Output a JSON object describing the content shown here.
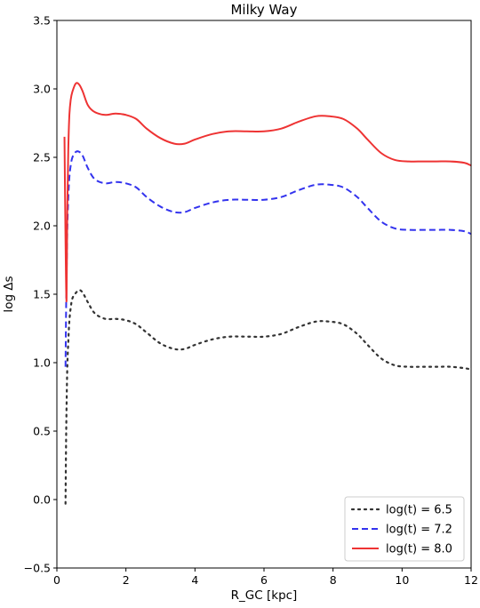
{
  "chart_data": {
    "type": "line",
    "title": "Milky Way",
    "xlabel": "R_GC [kpc]",
    "ylabel": "log Δs",
    "xlim": [
      0,
      12
    ],
    "ylim": [
      -0.5,
      3.5
    ],
    "xticks": [
      0,
      2,
      4,
      6,
      8,
      10,
      12
    ],
    "xtick_labels": [
      "0",
      "2",
      "4",
      "6",
      "8",
      "10",
      "12"
    ],
    "yticks": [
      -0.5,
      0.0,
      0.5,
      1.0,
      1.5,
      2.0,
      2.5,
      3.0,
      3.5
    ],
    "ytick_labels": [
      "−0.5",
      "0.0",
      "0.5",
      "1.0",
      "1.5",
      "2.0",
      "2.5",
      "3.0",
      "3.5"
    ],
    "grid": false,
    "legend_position": "bottom-right",
    "series": [
      {
        "name": "log(t) = 6.5",
        "color": "#333333",
        "dash": "dotted",
        "x": [
          0.25,
          0.27,
          0.3,
          0.33,
          0.36,
          0.4,
          0.45,
          0.55,
          0.65,
          0.75,
          0.9,
          1.1,
          1.4,
          1.7,
          2.0,
          2.3,
          2.6,
          3.0,
          3.4,
          3.7,
          4.0,
          4.5,
          5.0,
          5.5,
          6.0,
          6.5,
          7.0,
          7.5,
          7.9,
          8.3,
          8.7,
          9.0,
          9.4,
          9.8,
          10.2,
          10.6,
          11.0,
          11.4,
          11.8,
          12.0
        ],
        "y": [
          -0.03,
          0.5,
          0.95,
          1.15,
          1.3,
          1.4,
          1.47,
          1.51,
          1.53,
          1.51,
          1.44,
          1.36,
          1.32,
          1.32,
          1.31,
          1.28,
          1.22,
          1.14,
          1.1,
          1.1,
          1.13,
          1.17,
          1.19,
          1.19,
          1.19,
          1.21,
          1.26,
          1.3,
          1.3,
          1.28,
          1.21,
          1.13,
          1.03,
          0.98,
          0.97,
          0.97,
          0.97,
          0.97,
          0.96,
          0.95
        ]
      },
      {
        "name": "log(t) = 7.2",
        "color": "#3333ee",
        "dash": "dashed",
        "x": [
          0.25,
          0.27,
          0.3,
          0.33,
          0.36,
          0.4,
          0.45,
          0.55,
          0.65,
          0.75,
          0.9,
          1.1,
          1.4,
          1.7,
          2.0,
          2.3,
          2.6,
          3.0,
          3.4,
          3.7,
          4.0,
          4.5,
          5.0,
          5.5,
          6.0,
          6.5,
          7.0,
          7.5,
          7.9,
          8.3,
          8.7,
          9.0,
          9.4,
          9.8,
          10.2,
          10.6,
          11.0,
          11.4,
          11.8,
          12.0
        ],
        "y": [
          0.97,
          1.45,
          1.95,
          2.2,
          2.35,
          2.44,
          2.5,
          2.54,
          2.54,
          2.51,
          2.42,
          2.34,
          2.31,
          2.32,
          2.31,
          2.28,
          2.21,
          2.14,
          2.1,
          2.1,
          2.13,
          2.17,
          2.19,
          2.19,
          2.19,
          2.21,
          2.26,
          2.3,
          2.3,
          2.28,
          2.21,
          2.13,
          2.03,
          1.98,
          1.97,
          1.97,
          1.97,
          1.97,
          1.96,
          1.94
        ]
      },
      {
        "name": "log(t) = 8.0",
        "color": "#ee3333",
        "dash": "solid",
        "x": [
          0.22,
          0.25,
          0.28,
          0.3,
          0.33,
          0.36,
          0.4,
          0.45,
          0.55,
          0.65,
          0.75,
          0.9,
          1.1,
          1.4,
          1.7,
          2.0,
          2.3,
          2.6,
          3.0,
          3.4,
          3.7,
          4.0,
          4.5,
          5.0,
          5.5,
          6.0,
          6.5,
          7.0,
          7.5,
          7.9,
          8.3,
          8.7,
          9.0,
          9.4,
          9.8,
          10.2,
          10.6,
          11.0,
          11.4,
          11.8,
          12.0
        ],
        "y": [
          2.65,
          1.9,
          1.45,
          2.1,
          2.55,
          2.8,
          2.92,
          2.98,
          3.04,
          3.03,
          2.98,
          2.88,
          2.83,
          2.81,
          2.82,
          2.81,
          2.78,
          2.71,
          2.64,
          2.6,
          2.6,
          2.63,
          2.67,
          2.69,
          2.69,
          2.69,
          2.71,
          2.76,
          2.8,
          2.8,
          2.78,
          2.71,
          2.63,
          2.53,
          2.48,
          2.47,
          2.47,
          2.47,
          2.47,
          2.46,
          2.44
        ]
      }
    ]
  }
}
